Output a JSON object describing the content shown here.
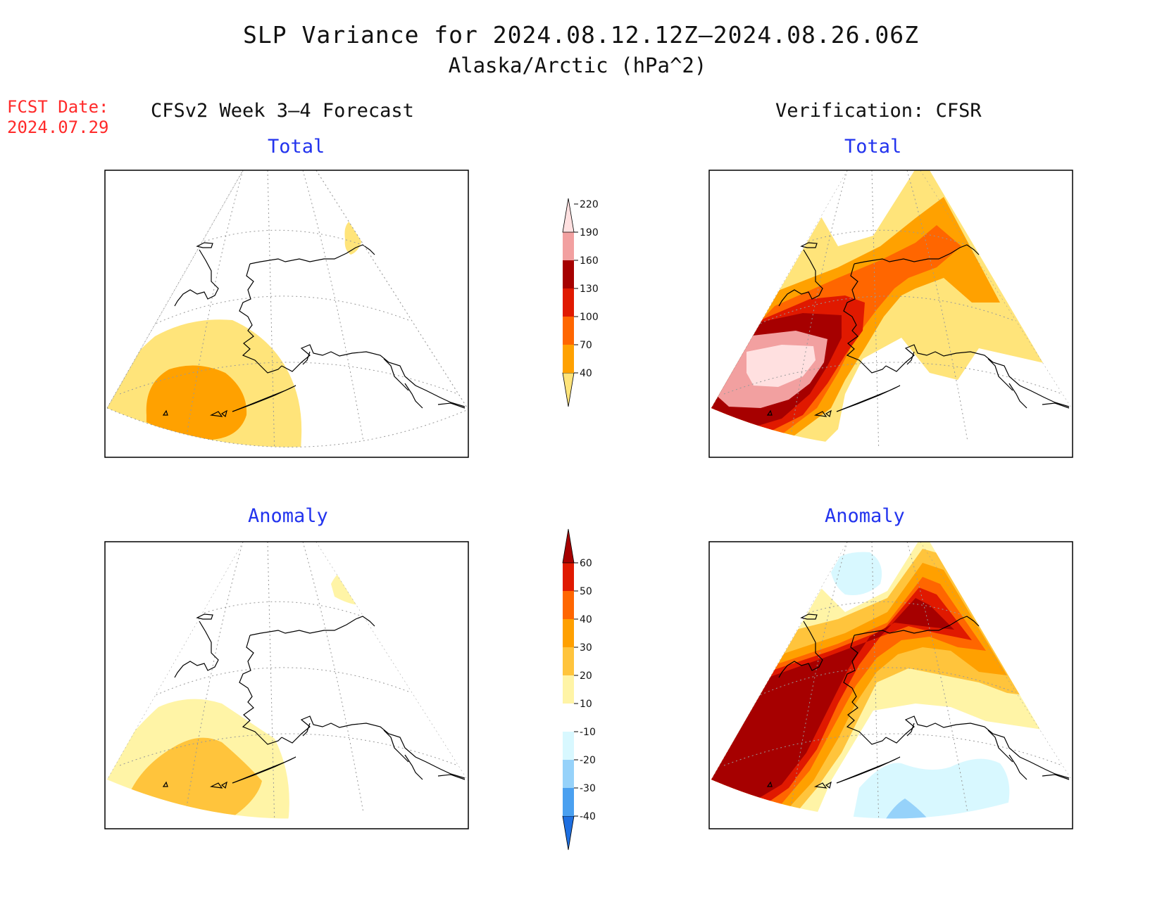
{
  "header": {
    "title": "SLP Variance for 2024.08.12.12Z—2024.08.26.06Z",
    "subtitle": "Alaska/Arctic (hPa^2)",
    "fcst_label": "FCST Date:",
    "fcst_date": "2024.07.29"
  },
  "columns": {
    "left": "CFSv2 Week 3—4 Forecast",
    "right": "Verification: CFSR"
  },
  "panels": {
    "total_label": "Total",
    "anomaly_label": "Anomaly"
  },
  "colorbars": {
    "total": {
      "ticks": [
        "40",
        "70",
        "100",
        "130",
        "160",
        "190",
        "220"
      ],
      "colors": [
        "#ffe47a",
        "#ffa100",
        "#ff6600",
        "#e01900",
        "#a60000",
        "#f2a0a0",
        "#ffe0e0"
      ]
    },
    "anomaly": {
      "ticks": [
        "-40",
        "-30",
        "-20",
        "-10",
        "10",
        "20",
        "30",
        "40",
        "50",
        "60"
      ],
      "colors": [
        "#1e6fe0",
        "#4aa0f0",
        "#96d2fa",
        "#d8f8ff",
        "#ffffff",
        "#fff4a6",
        "#ffc43c",
        "#ffa000",
        "#ff6600",
        "#e01900",
        "#a60000"
      ]
    }
  },
  "colors": {
    "title_text": "#111111",
    "fcst_text": "#ff2a2a",
    "panel_title": "#2233ee"
  }
}
